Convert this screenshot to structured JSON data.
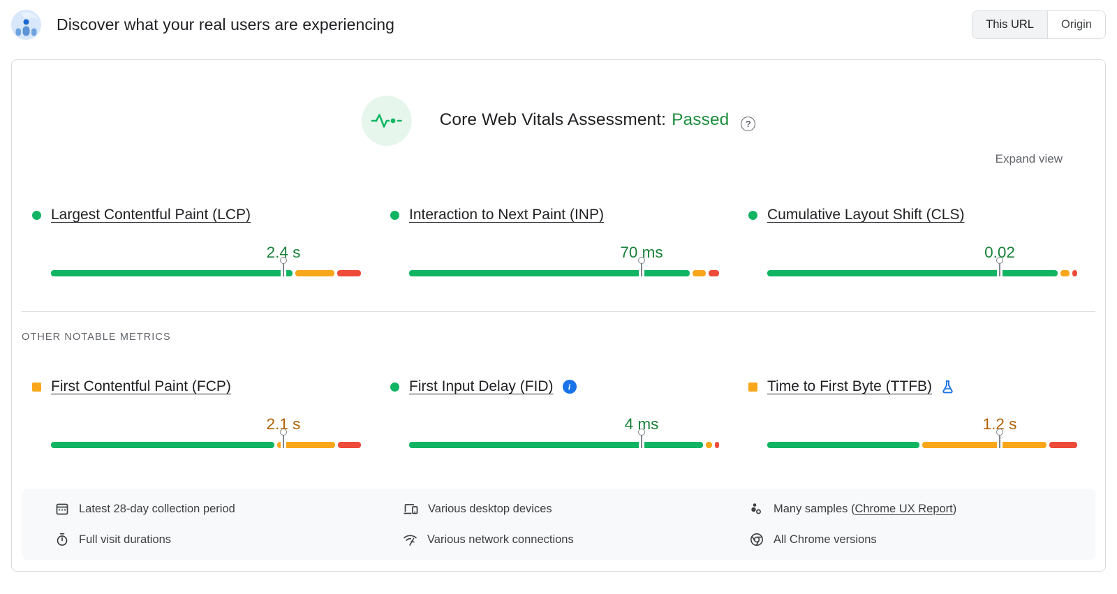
{
  "header": {
    "title": "Discover what your real users are experiencing",
    "toggle": {
      "this_url": "This URL",
      "origin": "Origin"
    }
  },
  "assessment": {
    "label": "Core Web Vitals Assessment:",
    "status": "Passed",
    "help_glyph": "?",
    "expand_label": "Expand view"
  },
  "section_label": "OTHER NOTABLE METRICS",
  "core_metrics": [
    {
      "id": "lcp",
      "label": "Largest Contentful Paint (LCP)",
      "value": "2.4 s",
      "rating": "good",
      "distribution": {
        "good": 76.6,
        "ni": 12.5,
        "poor": 7.5
      },
      "p75_pct": 75
    },
    {
      "id": "inp",
      "label": "Interaction to Next Paint (INP)",
      "value": "70 ms",
      "rating": "good",
      "distribution": {
        "good": 89.5,
        "ni": 4.3,
        "poor": 3.3
      },
      "p75_pct": 75
    },
    {
      "id": "cls",
      "label": "Cumulative Layout Shift (CLS)",
      "value": "0.02",
      "rating": "good",
      "distribution": {
        "good": 92.6,
        "ni": 3.0,
        "poor": 1.5
      },
      "p75_pct": 75
    }
  ],
  "other_metrics": [
    {
      "id": "fcp",
      "label": "First Contentful Paint (FCP)",
      "value": "2.1 s",
      "rating": "average",
      "distribution": {
        "good": 70.8,
        "ni": 18.4,
        "poor": 7.3
      },
      "p75_pct": 75
    },
    {
      "id": "fid",
      "label": "First Input Delay (FID)",
      "value": "4 ms",
      "rating": "good",
      "info_glyph": "i",
      "distribution": {
        "good": 92.6,
        "ni": 2.1,
        "poor": 1.3
      },
      "p75_pct": 75
    },
    {
      "id": "ttfb",
      "label": "Time to First Byte (TTFB)",
      "value": "1.2 s",
      "rating": "average",
      "distribution": {
        "good": 49.0,
        "ni": 40.0,
        "poor": 8.9
      },
      "p75_pct": 75
    }
  ],
  "footer": {
    "items": [
      {
        "icon": "calendar",
        "text": "Latest 28-day collection period"
      },
      {
        "icon": "stopwatch",
        "text": "Full visit durations"
      },
      {
        "icon": "devices",
        "text": "Various desktop devices"
      },
      {
        "icon": "network",
        "text": "Various network connections"
      },
      {
        "icon": "samples",
        "prefix": "Many samples (",
        "link": "Chrome UX Report",
        "suffix": ")"
      },
      {
        "icon": "chrome",
        "text": "All Chrome versions"
      }
    ]
  },
  "colors": {
    "good_bar": "#10b463",
    "ni_bar": "#f9a61b",
    "poor_bar": "#ee4b3a",
    "good_text": "#188038",
    "average_text": "#b06000",
    "passed_text": "#1e8e3e",
    "link_blue": "#1a73e8",
    "border": "#dadce0",
    "muted_text": "#5f6368"
  }
}
